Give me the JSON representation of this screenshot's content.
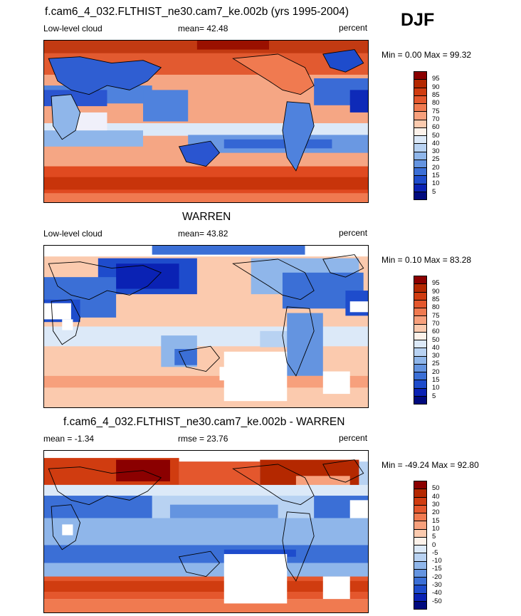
{
  "season": "DJF",
  "panels": [
    {
      "title": "f.cam6_4_032.FLTHIST_ne30.cam7_ke.002b (yrs 1995-2004)",
      "left_label": "Low-level cloud",
      "center_label": "mean=  42.48",
      "right_label": "percent",
      "minmax": "Min =   0.00 Max =  99.32",
      "colorbar_levels": [
        "95",
        "90",
        "85",
        "80",
        "75",
        "70",
        "60",
        "50",
        "40",
        "30",
        "25",
        "20",
        "15",
        "10",
        "5"
      ],
      "colorbar_colors": [
        "#8b0000",
        "#b42800",
        "#d03c10",
        "#e4572d",
        "#f07a50",
        "#f7a07c",
        "#fbcaae",
        "#fdf2ea",
        "#dce9f8",
        "#b8d2f2",
        "#8fb6ea",
        "#6494e0",
        "#3b6fd6",
        "#1e4ccc",
        "#0a22b4",
        "#000a7e"
      ]
    },
    {
      "title": "WARREN",
      "left_label": "Low-level cloud",
      "center_label": "mean=  43.82",
      "right_label": "percent",
      "minmax": "Min =   0.10 Max =  83.28",
      "colorbar_levels": [
        "95",
        "90",
        "85",
        "80",
        "75",
        "70",
        "60",
        "50",
        "40",
        "30",
        "25",
        "20",
        "15",
        "10",
        "5"
      ],
      "colorbar_colors": [
        "#8b0000",
        "#b42800",
        "#d03c10",
        "#e4572d",
        "#f07a50",
        "#f7a07c",
        "#fbcaae",
        "#fdf2ea",
        "#dce9f8",
        "#b8d2f2",
        "#8fb6ea",
        "#6494e0",
        "#3b6fd6",
        "#1e4ccc",
        "#0a22b4",
        "#000a7e"
      ]
    },
    {
      "title": "f.cam6_4_032.FLTHIST_ne30.cam7_ke.002b - WARREN",
      "left_label": "mean =  -1.34",
      "center_label": "rmse =  23.76",
      "right_label": "percent",
      "minmax": "Min = -49.24 Max =  92.80",
      "colorbar_levels": [
        "50",
        "40",
        "30",
        "20",
        "15",
        "10",
        "5",
        "0",
        "-5",
        "-10",
        "-15",
        "-20",
        "-30",
        "-40",
        "-50"
      ],
      "colorbar_colors": [
        "#8b0000",
        "#b42800",
        "#d03c10",
        "#e4572d",
        "#f07a50",
        "#f7a07c",
        "#fbcaae",
        "#fdf2ea",
        "#dce9f8",
        "#b8d2f2",
        "#8fb6ea",
        "#6494e0",
        "#3b6fd6",
        "#1e4ccc",
        "#0a22b4",
        "#000a7e"
      ]
    }
  ]
}
